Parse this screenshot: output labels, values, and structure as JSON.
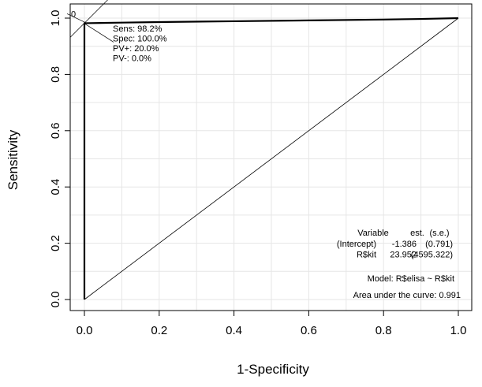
{
  "chart_data": {
    "type": "line",
    "title": "",
    "xlabel": "1-Specificity",
    "ylabel": "Sensitivity",
    "xlim": [
      0,
      1
    ],
    "ylim": [
      0,
      1
    ],
    "grid": true,
    "x_ticks": [
      "0.0",
      "0.2",
      "0.4",
      "0.6",
      "0.8",
      "1.0"
    ],
    "y_ticks": [
      "0.0",
      "0.2",
      "0.4",
      "0.6",
      "0.8",
      "1.0"
    ],
    "series": [
      {
        "x": [
          0,
          0,
          0.0,
          0.1,
          0.2,
          0.4,
          0.6,
          0.8,
          0.9,
          1.0
        ],
        "y": [
          0,
          0.982,
          0.982,
          0.984,
          0.986,
          0.989,
          0.992,
          0.995,
          0.997,
          1.0
        ]
      }
    ],
    "diagonal": {
      "x": [
        0,
        1
      ],
      "y": [
        0,
        1
      ]
    },
    "point_marker": {
      "label": "0",
      "x": 0,
      "y": 0.982
    },
    "cutoff_annotation": [
      "Sens: 98.2%",
      "Spec: 100.0%",
      "PV+: 20.0%",
      "PV-: 0.0%"
    ],
    "model_table": {
      "header": [
        "Variable",
        "est.",
        "(s.e.)"
      ],
      "rows": [
        [
          "(Intercept)",
          "-1.386",
          "(0.791)"
        ],
        [
          "R$kit",
          "23.952",
          "(4595.322)"
        ]
      ]
    },
    "model_text": "Model:  R$elisa ~ R$kit",
    "auc_text": "Area under the curve: 0.991"
  },
  "colors": {
    "grid": "#e6e6e6",
    "line": "#000000"
  }
}
